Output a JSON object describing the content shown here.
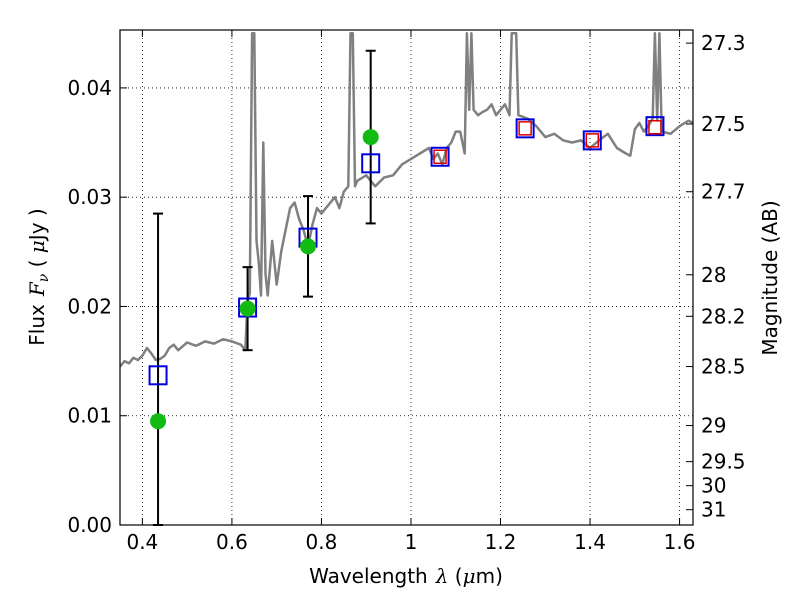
{
  "chart_data": {
    "type": "scatter",
    "title": "",
    "xlabel": "Wavelength",
    "xlabel_symbol": "λ",
    "xlabel_unit_open": " (",
    "xlabel_unit_mu": "μ",
    "xlabel_unit_rest": "m)",
    "ylabel": "Flux",
    "ylabel_symbol": "F",
    "ylabel_symbol_sub": "ν",
    "ylabel_unit_open": " ( ",
    "ylabel_unit_mu": "μ",
    "ylabel_unit_rest": "Jy )",
    "y2label": "Magnitude (AB)",
    "xlim": [
      0.35,
      1.63
    ],
    "ylim": [
      0.0,
      0.0453
    ],
    "grid": true,
    "legend": "none",
    "x_ticks": [
      {
        "value": 0.4,
        "label": "0.4"
      },
      {
        "value": 0.6,
        "label": "0.6"
      },
      {
        "value": 0.8,
        "label": "0.8"
      },
      {
        "value": 1.0,
        "label": "1"
      },
      {
        "value": 1.2,
        "label": "1.2"
      },
      {
        "value": 1.4,
        "label": "1.4"
      },
      {
        "value": 1.6,
        "label": "1.6"
      }
    ],
    "y_ticks": [
      {
        "value": 0.0,
        "label": "0.00"
      },
      {
        "value": 0.01,
        "label": "0.01"
      },
      {
        "value": 0.02,
        "label": "0.02"
      },
      {
        "value": 0.03,
        "label": "0.03"
      },
      {
        "value": 0.04,
        "label": "0.04"
      }
    ],
    "y2_ticks": [
      {
        "flux": 0.0441,
        "label": "27.3"
      },
      {
        "flux": 0.0367,
        "label": "27.5"
      },
      {
        "flux": 0.0305,
        "label": "27.7"
      },
      {
        "flux": 0.0229,
        "label": "28"
      },
      {
        "flux": 0.0191,
        "label": "28.2"
      },
      {
        "flux": 0.0145,
        "label": "28.5"
      },
      {
        "flux": 0.0091,
        "label": "29"
      },
      {
        "flux": 0.0058,
        "label": "29.5"
      },
      {
        "flux": 0.0036,
        "label": "30"
      },
      {
        "flux": 0.0014,
        "label": "31"
      }
    ],
    "colors": {
      "spectrum": "#808080",
      "blue_squares": "#0000dd",
      "red_squares": "#dd0000",
      "green_points": "#11bb11",
      "error_bars": "#000000",
      "grid": "#000000"
    },
    "spectrum": [
      [
        0.35,
        0.0145
      ],
      [
        0.36,
        0.015
      ],
      [
        0.37,
        0.0148
      ],
      [
        0.38,
        0.0153
      ],
      [
        0.39,
        0.0151
      ],
      [
        0.4,
        0.0155
      ],
      [
        0.41,
        0.0162
      ],
      [
        0.42,
        0.0157
      ],
      [
        0.43,
        0.0151
      ],
      [
        0.44,
        0.0152
      ],
      [
        0.45,
        0.0155
      ],
      [
        0.46,
        0.0162
      ],
      [
        0.47,
        0.0165
      ],
      [
        0.48,
        0.016
      ],
      [
        0.5,
        0.0167
      ],
      [
        0.52,
        0.0164
      ],
      [
        0.54,
        0.0168
      ],
      [
        0.56,
        0.0166
      ],
      [
        0.58,
        0.017
      ],
      [
        0.6,
        0.0168
      ],
      [
        0.62,
        0.0165
      ],
      [
        0.63,
        0.016
      ],
      [
        0.635,
        0.0205
      ],
      [
        0.64,
        0.0212
      ],
      [
        0.645,
        0.045
      ],
      [
        0.65,
        0.045
      ],
      [
        0.655,
        0.026
      ],
      [
        0.66,
        0.024
      ],
      [
        0.665,
        0.021
      ],
      [
        0.67,
        0.035
      ],
      [
        0.675,
        0.023
      ],
      [
        0.68,
        0.021
      ],
      [
        0.69,
        0.026
      ],
      [
        0.7,
        0.022
      ],
      [
        0.71,
        0.025
      ],
      [
        0.72,
        0.027
      ],
      [
        0.73,
        0.029
      ],
      [
        0.74,
        0.0295
      ],
      [
        0.75,
        0.028
      ],
      [
        0.76,
        0.027
      ],
      [
        0.77,
        0.0255
      ],
      [
        0.78,
        0.0275
      ],
      [
        0.79,
        0.029
      ],
      [
        0.8,
        0.0285
      ],
      [
        0.81,
        0.029
      ],
      [
        0.82,
        0.0295
      ],
      [
        0.83,
        0.03
      ],
      [
        0.84,
        0.029
      ],
      [
        0.85,
        0.0305
      ],
      [
        0.86,
        0.031
      ],
      [
        0.865,
        0.045
      ],
      [
        0.87,
        0.045
      ],
      [
        0.875,
        0.031
      ],
      [
        0.88,
        0.0315
      ],
      [
        0.9,
        0.032
      ],
      [
        0.92,
        0.031
      ],
      [
        0.94,
        0.0318
      ],
      [
        0.96,
        0.032
      ],
      [
        0.98,
        0.033
      ],
      [
        1.0,
        0.0335
      ],
      [
        1.02,
        0.034
      ],
      [
        1.04,
        0.0345
      ],
      [
        1.05,
        0.0335
      ],
      [
        1.06,
        0.034
      ],
      [
        1.07,
        0.033
      ],
      [
        1.08,
        0.0345
      ],
      [
        1.09,
        0.035
      ],
      [
        1.1,
        0.036
      ],
      [
        1.11,
        0.036
      ],
      [
        1.12,
        0.034
      ],
      [
        1.125,
        0.045
      ],
      [
        1.13,
        0.038
      ],
      [
        1.135,
        0.045
      ],
      [
        1.14,
        0.038
      ],
      [
        1.15,
        0.0375
      ],
      [
        1.16,
        0.0378
      ],
      [
        1.17,
        0.038
      ],
      [
        1.18,
        0.0385
      ],
      [
        1.19,
        0.0375
      ],
      [
        1.2,
        0.038
      ],
      [
        1.21,
        0.0385
      ],
      [
        1.22,
        0.0375
      ],
      [
        1.225,
        0.045
      ],
      [
        1.235,
        0.045
      ],
      [
        1.24,
        0.0375
      ],
      [
        1.26,
        0.0372
      ],
      [
        1.28,
        0.0365
      ],
      [
        1.3,
        0.0355
      ],
      [
        1.32,
        0.0358
      ],
      [
        1.34,
        0.0352
      ],
      [
        1.36,
        0.035
      ],
      [
        1.38,
        0.0352
      ],
      [
        1.4,
        0.0345
      ],
      [
        1.42,
        0.0352
      ],
      [
        1.44,
        0.0358
      ],
      [
        1.46,
        0.0345
      ],
      [
        1.48,
        0.034
      ],
      [
        1.49,
        0.0338
      ],
      [
        1.5,
        0.0362
      ],
      [
        1.51,
        0.0368
      ],
      [
        1.52,
        0.036
      ],
      [
        1.53,
        0.0365
      ],
      [
        1.54,
        0.0372
      ],
      [
        1.545,
        0.045
      ],
      [
        1.55,
        0.037
      ],
      [
        1.555,
        0.045
      ],
      [
        1.56,
        0.036
      ],
      [
        1.58,
        0.0358
      ],
      [
        1.6,
        0.0365
      ],
      [
        1.62,
        0.037
      ],
      [
        1.63,
        0.0368
      ]
    ],
    "blue_squares": [
      {
        "x": 0.435,
        "y": 0.0137
      },
      {
        "x": 0.635,
        "y": 0.0199
      },
      {
        "x": 0.77,
        "y": 0.0263
      },
      {
        "x": 0.91,
        "y": 0.0331
      },
      {
        "x": 1.065,
        "y": 0.0337
      },
      {
        "x": 1.255,
        "y": 0.0363
      },
      {
        "x": 1.405,
        "y": 0.0352
      },
      {
        "x": 1.545,
        "y": 0.0365
      }
    ],
    "red_squares": [
      {
        "x": 1.065,
        "y": 0.0337
      },
      {
        "x": 1.255,
        "y": 0.0363
      },
      {
        "x": 1.405,
        "y": 0.0352
      },
      {
        "x": 1.545,
        "y": 0.0364
      }
    ],
    "green_points": [
      {
        "x": 0.435,
        "y": 0.0095,
        "lo": 0.0,
        "hi": 0.0285
      },
      {
        "x": 0.635,
        "y": 0.0198,
        "lo": 0.016,
        "hi": 0.0236
      },
      {
        "x": 0.77,
        "y": 0.0255,
        "lo": 0.0209,
        "hi": 0.0301
      },
      {
        "x": 0.91,
        "y": 0.0355,
        "lo": 0.0276,
        "hi": 0.0434
      }
    ]
  }
}
